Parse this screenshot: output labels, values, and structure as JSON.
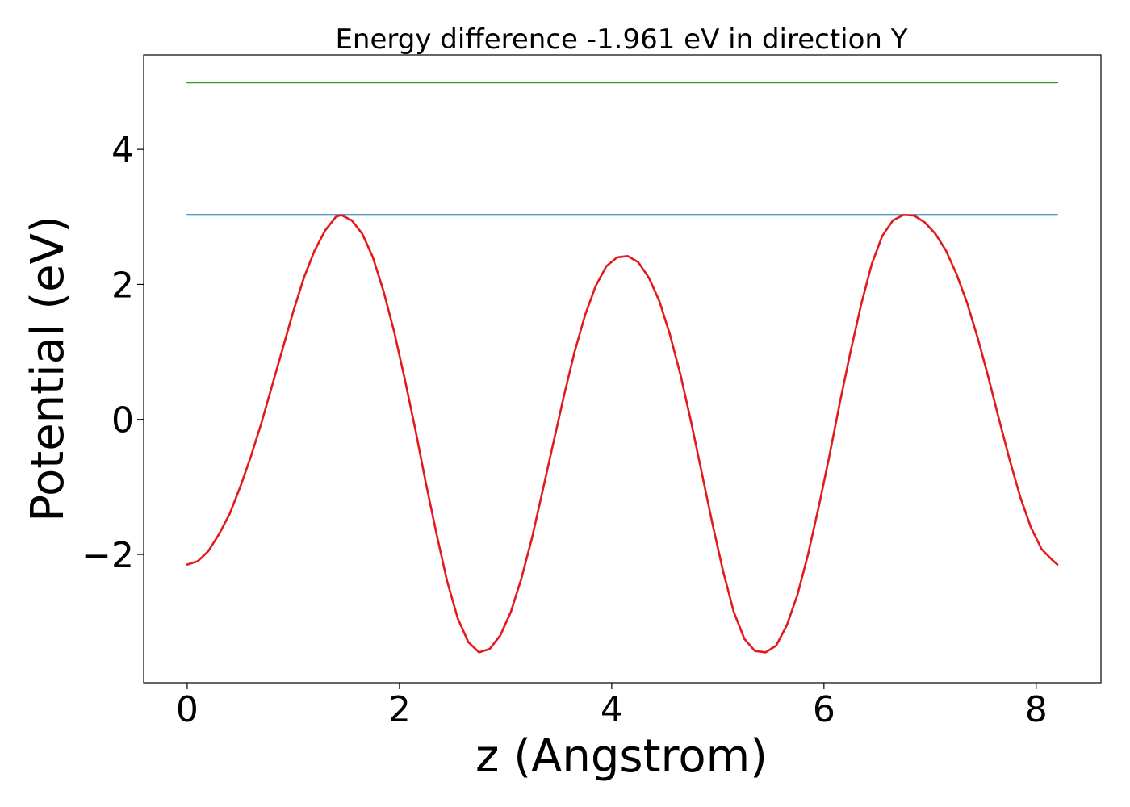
{
  "chart_data": {
    "type": "line",
    "title": "Energy difference -1.961 eV in direction Y",
    "xlabel": "z (Angstrom)",
    "ylabel": "Potential (eV)",
    "xlim": [
      -0.41,
      8.61
    ],
    "ylim": [
      -3.9,
      5.4
    ],
    "x_ticks": [
      0,
      2,
      4,
      6,
      8
    ],
    "x_tick_labels": [
      "0",
      "2",
      "4",
      "6",
      "8"
    ],
    "y_ticks": [
      -2,
      0,
      2,
      4
    ],
    "y_tick_labels": [
      "−2",
      "0",
      "2",
      "4"
    ],
    "grid": false,
    "series": [
      {
        "color": "#1f77b4",
        "points": [
          [
            0,
            3.03
          ],
          [
            8.2,
            3.03
          ]
        ]
      },
      {
        "color": "#2ca02c",
        "points": [
          [
            0,
            4.99
          ],
          [
            8.2,
            4.99
          ]
        ]
      },
      {
        "color": "#e31a1c",
        "points": [
          [
            0,
            -2.15
          ],
          [
            0.1,
            -2.1
          ],
          [
            0.2,
            -1.95
          ],
          [
            0.3,
            -1.7
          ],
          [
            0.4,
            -1.4
          ],
          [
            0.5,
            -1.0
          ],
          [
            0.6,
            -0.55
          ],
          [
            0.7,
            -0.05
          ],
          [
            0.8,
            0.5
          ],
          [
            0.9,
            1.05
          ],
          [
            1.0,
            1.6
          ],
          [
            1.1,
            2.1
          ],
          [
            1.2,
            2.5
          ],
          [
            1.3,
            2.8
          ],
          [
            1.4,
            3.0
          ],
          [
            1.45,
            3.03
          ],
          [
            1.55,
            2.95
          ],
          [
            1.65,
            2.75
          ],
          [
            1.75,
            2.4
          ],
          [
            1.85,
            1.9
          ],
          [
            1.95,
            1.3
          ],
          [
            2.05,
            0.6
          ],
          [
            2.15,
            -0.15
          ],
          [
            2.25,
            -0.95
          ],
          [
            2.35,
            -1.7
          ],
          [
            2.45,
            -2.4
          ],
          [
            2.55,
            -2.95
          ],
          [
            2.65,
            -3.3
          ],
          [
            2.75,
            -3.45
          ],
          [
            2.85,
            -3.4
          ],
          [
            2.95,
            -3.2
          ],
          [
            3.05,
            -2.85
          ],
          [
            3.15,
            -2.35
          ],
          [
            3.25,
            -1.75
          ],
          [
            3.35,
            -1.05
          ],
          [
            3.45,
            -0.35
          ],
          [
            3.55,
            0.35
          ],
          [
            3.65,
            1.0
          ],
          [
            3.75,
            1.55
          ],
          [
            3.85,
            1.98
          ],
          [
            3.95,
            2.27
          ],
          [
            4.05,
            2.4
          ],
          [
            4.15,
            2.42
          ],
          [
            4.25,
            2.33
          ],
          [
            4.35,
            2.1
          ],
          [
            4.45,
            1.75
          ],
          [
            4.55,
            1.25
          ],
          [
            4.65,
            0.65
          ],
          [
            4.75,
            -0.05
          ],
          [
            4.85,
            -0.8
          ],
          [
            4.95,
            -1.55
          ],
          [
            5.05,
            -2.25
          ],
          [
            5.15,
            -2.85
          ],
          [
            5.25,
            -3.25
          ],
          [
            5.35,
            -3.43
          ],
          [
            5.45,
            -3.45
          ],
          [
            5.55,
            -3.35
          ],
          [
            5.65,
            -3.05
          ],
          [
            5.75,
            -2.6
          ],
          [
            5.85,
            -2.0
          ],
          [
            5.95,
            -1.3
          ],
          [
            6.05,
            -0.55
          ],
          [
            6.15,
            0.25
          ],
          [
            6.25,
            1.0
          ],
          [
            6.35,
            1.7
          ],
          [
            6.45,
            2.3
          ],
          [
            6.55,
            2.72
          ],
          [
            6.65,
            2.95
          ],
          [
            6.75,
            3.03
          ],
          [
            6.85,
            3.02
          ],
          [
            6.95,
            2.92
          ],
          [
            7.05,
            2.75
          ],
          [
            7.15,
            2.5
          ],
          [
            7.25,
            2.15
          ],
          [
            7.35,
            1.72
          ],
          [
            7.45,
            1.2
          ],
          [
            7.55,
            0.62
          ],
          [
            7.65,
            0.0
          ],
          [
            7.75,
            -0.6
          ],
          [
            7.85,
            -1.15
          ],
          [
            7.95,
            -1.6
          ],
          [
            8.05,
            -1.92
          ],
          [
            8.15,
            -2.08
          ],
          [
            8.2,
            -2.15
          ]
        ]
      }
    ]
  }
}
